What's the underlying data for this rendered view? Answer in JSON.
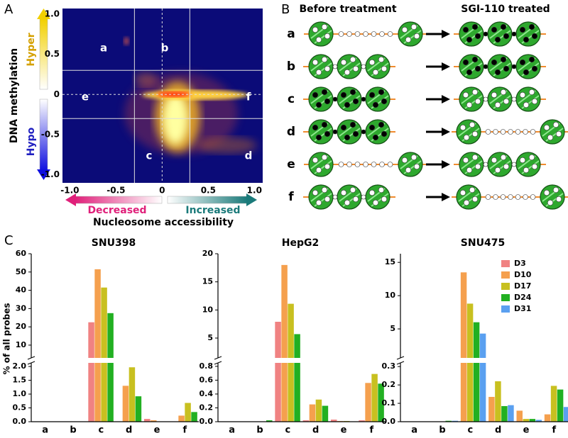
{
  "panel_labels": [
    "A",
    "B",
    "C"
  ],
  "chart_data": [
    {
      "type": "heatmap",
      "xlabel": "Nucleosome accessibility",
      "ylabel": "DNA methylation",
      "xlim": [
        -1.08,
        1.09
      ],
      "ylim": [
        -1.1,
        1.07
      ],
      "xticks": [
        {
          "value": -1,
          "label": "-1.0"
        },
        -0.5,
        0,
        0.5,
        {
          "value": 1,
          "label": "1.0"
        }
      ],
      "yticks": [
        {
          "value": 1,
          "label": "1.0"
        },
        0.5,
        0,
        -0.5,
        {
          "value": -1,
          "label": "-1.0"
        }
      ],
      "boundaries": [
        -0.3,
        0.3
      ],
      "color": "#0b0b78",
      "regions": [
        "a",
        "b",
        "c",
        "d",
        "e",
        "f"
      ],
      "y_arrow_labels": [
        "Hyper",
        "Hypo"
      ],
      "x_arrow_labels": [
        "Decreased",
        "Increased"
      ]
    },
    {
      "type": "bar",
      "title": "SNU398",
      "ylabel": "% of all probes",
      "categories": [
        "a",
        "b",
        "c",
        "d",
        "e",
        "f"
      ],
      "series": [
        {
          "color": "#f08282",
          "values": [
            0,
            0,
            22.5,
            0.01,
            0.1,
            0.01
          ]
        },
        {
          "color": "#f5a04e",
          "values": [
            0,
            0,
            51.5,
            1.3,
            0.05,
            0.22
          ]
        },
        {
          "color": "#c8c020",
          "values": [
            0,
            0,
            41.5,
            1.97,
            0.01,
            0.68
          ]
        },
        {
          "color": "#22b022",
          "values": [
            0,
            0.01,
            27.5,
            0.92,
            0.01,
            0.35
          ]
        }
      ],
      "ylim": [
        0,
        60
      ],
      "ybreak": [
        2.13,
        3
      ],
      "yticks": [
        {
          "value": 0,
          "label": "0.0"
        },
        0.5,
        {
          "value": 1,
          "label": "1.0"
        },
        1.5,
        {
          "value": 2,
          "label": "2.0"
        },
        10,
        20,
        30,
        40,
        50,
        60
      ]
    },
    {
      "type": "bar",
      "title": "HepG2",
      "categories": [
        "a",
        "b",
        "c",
        "d",
        "e",
        "f"
      ],
      "series": [
        {
          "color": "#f08282",
          "values": [
            0,
            0,
            7.9,
            0.02,
            0.03,
            0.02
          ]
        },
        {
          "color": "#f5a04e",
          "values": [
            0,
            0,
            18,
            0.25,
            0.01,
            0.56
          ]
        },
        {
          "color": "#c8c020",
          "values": [
            0,
            0,
            11.1,
            0.32,
            0.01,
            0.69
          ]
        },
        {
          "color": "#22b022",
          "values": [
            0,
            0.02,
            5.7,
            0.23,
            0,
            0.55
          ]
        }
      ],
      "ylim": [
        0,
        20
      ],
      "ybreak": [
        0.85,
        1.47
      ],
      "yticks": [
        {
          "value": 0,
          "label": "0.0"
        },
        0.2,
        0.4,
        0.6,
        0.8,
        5,
        10,
        15,
        20
      ]
    },
    {
      "type": "bar",
      "title": "SNU475",
      "legend": "upper right",
      "categories": [
        "a",
        "b",
        "c",
        "d",
        "e",
        "f"
      ],
      "series": [
        {
          "name": "D3",
          "color": "#f08282",
          "values": [
            0,
            0,
            0,
            0,
            0,
            0
          ]
        },
        {
          "name": "D10",
          "color": "#f5a04e",
          "values": [
            0,
            0,
            13.5,
            0.135,
            0.06,
            0.04
          ]
        },
        {
          "name": "D17",
          "color": "#c8c020",
          "values": [
            0,
            0,
            8.8,
            0.22,
            0.015,
            0.195
          ]
        },
        {
          "name": "D24",
          "color": "#22b022",
          "values": [
            0,
            0.005,
            6,
            0.085,
            0.015,
            0.175
          ]
        },
        {
          "name": "D31",
          "color": "#5aa0f0",
          "values": [
            0,
            0.005,
            4.3,
            0.09,
            0.01,
            0.08
          ]
        }
      ],
      "ylim": [
        0,
        16.3
      ],
      "ybreak": [
        0.32,
        0.64
      ],
      "yticks": [
        {
          "value": 0,
          "label": "0.0"
        },
        0.1,
        0.2,
        0.3,
        5,
        10,
        15
      ]
    }
  ],
  "diagram": {
    "headers": [
      "Before treatment",
      "SGI-110 treated"
    ],
    "rows": [
      "a",
      "b",
      "c",
      "d",
      "e",
      "f"
    ]
  }
}
